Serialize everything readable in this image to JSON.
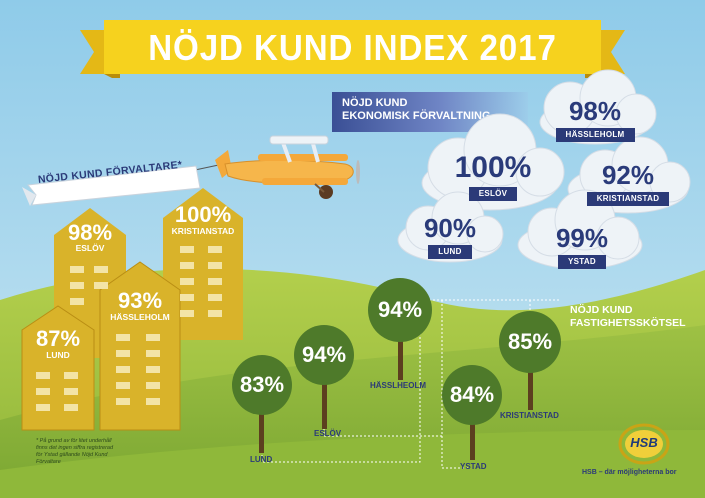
{
  "title": "NÖJD KUND INDEX 2017",
  "ekonomisk": {
    "heading_line1": "NÖJD KUND",
    "heading_line2": "EKONOMISK FÖRVALTNING",
    "clouds": [
      {
        "pct": "98%",
        "city": "HÄSSLEHOLM"
      },
      {
        "pct": "100%",
        "city": "ESLÖV"
      },
      {
        "pct": "92%",
        "city": "KRISTIANSTAD"
      },
      {
        "pct": "90%",
        "city": "LUND"
      },
      {
        "pct": "99%",
        "city": "YSTAD"
      }
    ]
  },
  "forvaltare": {
    "banner": "NÖJD KUND  FÖRVALTARE*",
    "buildings": [
      {
        "pct": "98%",
        "city": "ESLÖV"
      },
      {
        "pct": "100%",
        "city": "KRISTIANSTAD"
      },
      {
        "pct": "93%",
        "city": "HÄSSLEHOLM"
      },
      {
        "pct": "87%",
        "city": "LUND"
      }
    ],
    "footnote": "* På grund av för litet underhåll finns det ingen siffra registrerad för Ystad gällande Nöjd Kund Förvaltare"
  },
  "fastighet": {
    "heading_line1": "NÖJD KUND",
    "heading_line2": "FASTIGHETSSKÖTSEL",
    "trees": [
      {
        "pct": "83%",
        "city": "LUND"
      },
      {
        "pct": "94%",
        "city": "ESLÖV"
      },
      {
        "pct": "94%",
        "city": "HÄSSLHEOLM"
      },
      {
        "pct": "84%",
        "city": "YSTAD"
      },
      {
        "pct": "85%",
        "city": "KRISTIANSTAD"
      }
    ]
  },
  "brand": {
    "logo_text": "HSB",
    "tagline": "HSB – där möjligheterna bor"
  },
  "colors": {
    "sky": "#9fd2ec",
    "banner_yellow": "#f6d21e",
    "navy": "#2b3a78",
    "building_gold": "#d9b32a",
    "tree_green": "#4e7a2a",
    "grass": "#8fb83a"
  }
}
